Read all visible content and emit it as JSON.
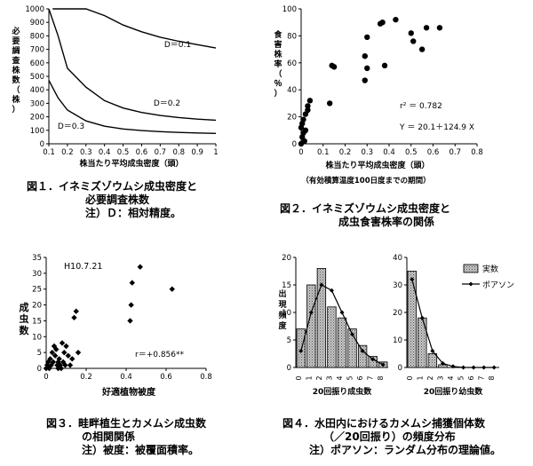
{
  "colors": {
    "ink": "#000000",
    "bar_fill": "#aaaaaa",
    "background": "#ffffff"
  },
  "captions": {
    "fig1": {
      "line1": "図１．イネミズゾウムシ成虫密度と",
      "line2": "必要調査株数",
      "line3": "注）Ｄ：相対精度。"
    },
    "fig2": {
      "line1": "図２．イネミズゾウムシ成虫密度と",
      "line2": "成虫食害株率の関係"
    },
    "fig3": {
      "line1": "図３．畦畔植生とカメムシ成虫数",
      "line2": "の相関関係",
      "line3": "注）被度：被覆面積率。"
    },
    "fig4": {
      "line1": "図４．水田内におけるカメムシ捕獲個体数",
      "line2": "（／20回振り）の頻度分布",
      "line3": "注）ポアソン：ランダム分布の理論値。"
    }
  },
  "chart_data": [
    {
      "id": "fig1",
      "type": "line",
      "title": "",
      "xlabel": "株当たり平均成虫密度（頭）",
      "ylabel": "必要調査株数（株）",
      "xlim": [
        0.1,
        1.0
      ],
      "ylim": [
        0,
        1000
      ],
      "x_ticks": [
        "0.1",
        "0.2",
        "0.3",
        "0.4",
        "0.5",
        "0.6",
        "0.7",
        "0.8",
        "0.9",
        "1"
      ],
      "y_ticks": [
        "0",
        "100",
        "200",
        "300",
        "400",
        "500",
        "600",
        "700",
        "800",
        "900",
        "1000"
      ],
      "series": [
        {
          "name": "D＝0.1",
          "x": [
            0.12,
            0.15,
            0.2,
            0.3,
            0.4,
            0.5,
            0.6,
            0.7,
            0.8,
            0.9,
            1.0
          ],
          "y": [
            1000,
            1000,
            1000,
            1000,
            950,
            880,
            830,
            790,
            760,
            735,
            710
          ]
        },
        {
          "name": "D＝0.2",
          "x": [
            0.1,
            0.15,
            0.2,
            0.3,
            0.4,
            0.5,
            0.6,
            0.7,
            0.8,
            0.9,
            1.0
          ],
          "y": [
            1000,
            800,
            560,
            420,
            320,
            265,
            232,
            210,
            195,
            183,
            175
          ]
        },
        {
          "name": "D＝0.3",
          "x": [
            0.1,
            0.15,
            0.2,
            0.3,
            0.4,
            0.5,
            0.6,
            0.7,
            0.8,
            0.9,
            1.0
          ],
          "y": [
            470,
            340,
            250,
            170,
            130,
            110,
            98,
            90,
            84,
            80,
            77
          ]
        }
      ]
    },
    {
      "id": "fig2",
      "type": "scatter",
      "title": "",
      "xlabel": "株当たり平均成虫密度（頭）",
      "xlabel2": "（有効積算温度100日度までの期間）",
      "ylabel": "食害株率（％）",
      "xlim": [
        0,
        0.8
      ],
      "ylim": [
        0,
        100
      ],
      "x_ticks": [
        "0",
        "0.1",
        "0.2",
        "0.3",
        "0.4",
        "0.5",
        "0.6",
        "0.7",
        "0.8"
      ],
      "y_ticks": [
        "0",
        "20",
        "40",
        "60",
        "80",
        "100"
      ],
      "annotations": [
        "r² ＝ 0.782",
        "Y ＝ 20.1＋124.9 X"
      ],
      "x": [
        0.0,
        0.005,
        0.01,
        0.0,
        0.005,
        0.01,
        0.02,
        0.03,
        0.03,
        0.04,
        0.02,
        0.015,
        0.13,
        0.15,
        0.14,
        0.29,
        0.3,
        0.3,
        0.36,
        0.38,
        0.43,
        0.5,
        0.51,
        0.55,
        0.57,
        0.63,
        0.37,
        0.29
      ],
      "y": [
        0,
        5,
        8,
        12,
        15,
        18,
        22,
        25,
        28,
        32,
        10,
        2,
        30,
        57,
        58,
        47,
        56,
        79,
        89,
        58,
        92,
        82,
        76,
        70,
        86,
        86,
        90,
        65
      ]
    },
    {
      "id": "fig3",
      "type": "scatter",
      "title": "H10.7.21",
      "xlabel": "好適植物被度",
      "ylabel": "成虫数",
      "xlim": [
        0,
        0.8
      ],
      "ylim": [
        0,
        35
      ],
      "x_ticks": [
        "0",
        "0.2",
        "0.4",
        "0.6",
        "0.8"
      ],
      "y_ticks": [
        "0",
        "5",
        "10",
        "15",
        "20",
        "25",
        "30",
        "35"
      ],
      "annotations": [
        "r＝+0.856**"
      ],
      "x": [
        0.0,
        0.005,
        0.01,
        0.015,
        0.02,
        0.025,
        0.03,
        0.035,
        0.04,
        0.045,
        0.05,
        0.055,
        0.06,
        0.065,
        0.07,
        0.075,
        0.08,
        0.085,
        0.09,
        0.095,
        0.1,
        0.11,
        0.12,
        0.13,
        0.14,
        0.15,
        0.16,
        0.06,
        0.065,
        0.42,
        0.425,
        0.43,
        0.47,
        0.63
      ],
      "y": [
        0,
        1,
        2,
        0,
        3,
        1,
        5,
        2,
        7,
        4,
        6,
        1,
        2,
        3,
        1,
        0,
        8,
        2,
        5,
        1,
        7,
        4,
        1,
        3,
        16,
        18,
        5,
        0,
        1,
        15,
        20,
        27,
        32,
        25
      ]
    },
    {
      "id": "fig4a",
      "type": "bar",
      "legend": [
        "実数",
        "ポアソン"
      ],
      "xlabel": "20回振り成虫数",
      "ylabel": "出現頻度",
      "ylim": [
        0,
        20
      ],
      "y_ticks": [
        "0",
        "5",
        "10",
        "15",
        "20"
      ],
      "categories": [
        "0",
        "1",
        "2",
        "3",
        "4",
        "5",
        "6",
        "7",
        "8"
      ],
      "series": [
        {
          "name": "実数",
          "values": [
            7,
            15,
            18,
            11,
            9,
            7,
            4,
            2,
            1
          ]
        },
        {
          "name": "ポアソン",
          "values": [
            3,
            10,
            15,
            14,
            10,
            6,
            3,
            1.5,
            0.5
          ]
        }
      ]
    },
    {
      "id": "fig4b",
      "type": "bar",
      "legend": [
        "実数",
        "ポアソン"
      ],
      "xlabel": "20回振り幼虫数",
      "ylabel": "",
      "ylim": [
        0,
        40
      ],
      "y_ticks": [
        "0",
        "10",
        "20",
        "30",
        "40"
      ],
      "categories": [
        "0",
        "1",
        "2",
        "3",
        "4",
        "5",
        "6",
        "7",
        "8"
      ],
      "series": [
        {
          "name": "実数",
          "values": [
            35,
            18,
            5,
            1,
            0,
            0,
            0,
            0,
            0
          ]
        },
        {
          "name": "ポアソン",
          "values": [
            32,
            18,
            6,
            1.5,
            0.4,
            0,
            0,
            0,
            0
          ]
        }
      ]
    }
  ]
}
